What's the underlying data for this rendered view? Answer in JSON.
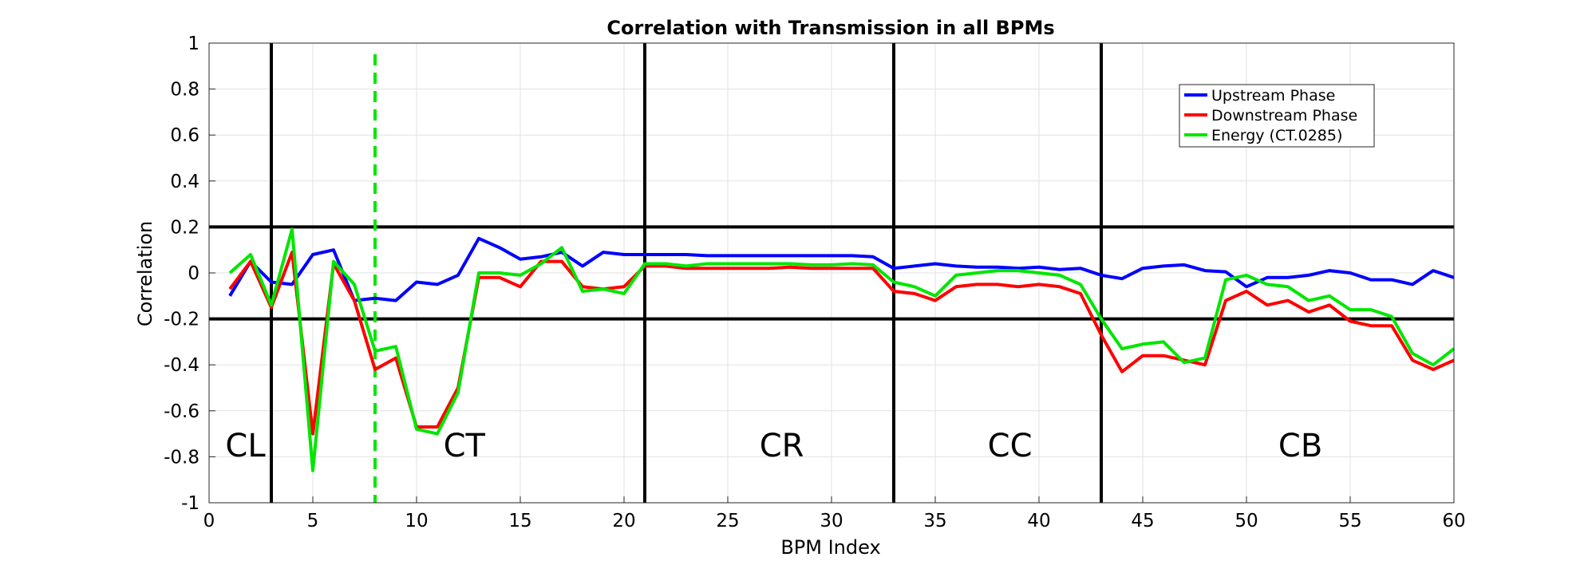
{
  "chart_data": {
    "type": "line",
    "title": "Correlation with Transmission in all BPMs",
    "xlabel": "BPM Index",
    "ylabel": "Correlation",
    "xlim": [
      0,
      60
    ],
    "ylim": [
      -1,
      1
    ],
    "xticks": [
      0,
      5,
      10,
      15,
      20,
      25,
      30,
      35,
      40,
      45,
      50,
      55,
      60
    ],
    "yticks": [
      1,
      0.8,
      0.6,
      0.4,
      0.2,
      0,
      -0.2,
      -0.4,
      -0.6,
      -0.8,
      -1
    ],
    "ytick_labels": [
      "1",
      "0.8",
      "0.6",
      "0.4",
      "0.2",
      "0",
      "-0.2",
      "-0.4",
      "-0.6",
      "-0.8",
      "-1"
    ],
    "grid": true,
    "legend_position": "top-right",
    "x": [
      1,
      2,
      3,
      4,
      5,
      6,
      7,
      8,
      9,
      10,
      11,
      12,
      13,
      14,
      15,
      16,
      17,
      18,
      19,
      20,
      21,
      22,
      23,
      24,
      25,
      26,
      27,
      28,
      29,
      30,
      31,
      32,
      33,
      34,
      35,
      36,
      37,
      38,
      39,
      40,
      41,
      42,
      43,
      44,
      45,
      46,
      47,
      48,
      49,
      50,
      51,
      52,
      53,
      54,
      55,
      56,
      57,
      58,
      59,
      60
    ],
    "series": [
      {
        "name": "Upstream Phase",
        "color": "#0000ff",
        "values": [
          -0.1,
          0.05,
          -0.04,
          -0.05,
          0.08,
          0.1,
          -0.12,
          -0.11,
          -0.12,
          -0.04,
          -0.05,
          -0.01,
          0.15,
          0.11,
          0.06,
          0.07,
          0.09,
          0.03,
          0.09,
          0.08,
          0.08,
          0.08,
          0.08,
          0.075,
          0.075,
          0.075,
          0.075,
          0.075,
          0.075,
          0.075,
          0.075,
          0.07,
          0.02,
          0.03,
          0.04,
          0.03,
          0.025,
          0.025,
          0.02,
          0.025,
          0.015,
          0.02,
          -0.01,
          -0.025,
          0.02,
          0.03,
          0.035,
          0.01,
          0.005,
          -0.06,
          -0.02,
          -0.02,
          -0.01,
          0.01,
          0.0,
          -0.03,
          -0.03,
          -0.05,
          0.01,
          -0.02
        ]
      },
      {
        "name": "Downstream Phase",
        "color": "#ff0000",
        "values": [
          -0.07,
          0.05,
          -0.15,
          0.09,
          -0.7,
          0.04,
          -0.12,
          -0.42,
          -0.37,
          -0.67,
          -0.67,
          -0.5,
          -0.02,
          -0.02,
          -0.06,
          0.05,
          0.05,
          -0.06,
          -0.07,
          -0.06,
          0.03,
          0.03,
          0.02,
          0.02,
          0.02,
          0.02,
          0.02,
          0.025,
          0.02,
          0.02,
          0.02,
          0.02,
          -0.08,
          -0.09,
          -0.12,
          -0.06,
          -0.05,
          -0.05,
          -0.06,
          -0.05,
          -0.06,
          -0.09,
          -0.27,
          -0.43,
          -0.36,
          -0.36,
          -0.38,
          -0.4,
          -0.12,
          -0.08,
          -0.14,
          -0.12,
          -0.17,
          -0.14,
          -0.21,
          -0.23,
          -0.23,
          -0.38,
          -0.42,
          -0.38
        ]
      },
      {
        "name": "Energy (CT.0285)",
        "color": "#00e600",
        "values": [
          0.0,
          0.08,
          -0.14,
          0.19,
          -0.86,
          0.05,
          -0.05,
          -0.34,
          -0.32,
          -0.68,
          -0.7,
          -0.52,
          0.0,
          0.0,
          -0.01,
          0.04,
          0.11,
          -0.08,
          -0.07,
          -0.09,
          0.04,
          0.04,
          0.03,
          0.04,
          0.04,
          0.04,
          0.04,
          0.04,
          0.035,
          0.035,
          0.04,
          0.035,
          -0.04,
          -0.06,
          -0.1,
          -0.01,
          0.0,
          0.01,
          0.01,
          0.0,
          -0.01,
          -0.05,
          -0.2,
          -0.33,
          -0.31,
          -0.3,
          -0.39,
          -0.37,
          -0.03,
          -0.01,
          -0.05,
          -0.06,
          -0.12,
          -0.1,
          -0.16,
          -0.16,
          -0.19,
          -0.35,
          -0.4,
          -0.33
        ]
      }
    ],
    "vertical_lines": [
      {
        "x": 3,
        "style": "solid",
        "color": "#000000"
      },
      {
        "x": 8,
        "style": "dashed",
        "color": "#00e600"
      },
      {
        "x": 21,
        "style": "solid",
        "color": "#000000"
      },
      {
        "x": 33,
        "style": "solid",
        "color": "#000000"
      },
      {
        "x": 43,
        "style": "solid",
        "color": "#000000"
      }
    ],
    "horizontal_lines": [
      {
        "y": 0.2,
        "color": "#000000"
      },
      {
        "y": -0.2,
        "color": "#000000"
      }
    ],
    "annotations": [
      {
        "text": "CL",
        "x": 1.75,
        "y": -0.75
      },
      {
        "text": "CT",
        "x": 12.3,
        "y": -0.75
      },
      {
        "text": "CR",
        "x": 27.6,
        "y": -0.75
      },
      {
        "text": "CC",
        "x": 38.6,
        "y": -0.75
      },
      {
        "text": "CB",
        "x": 52.6,
        "y": -0.75
      }
    ]
  }
}
